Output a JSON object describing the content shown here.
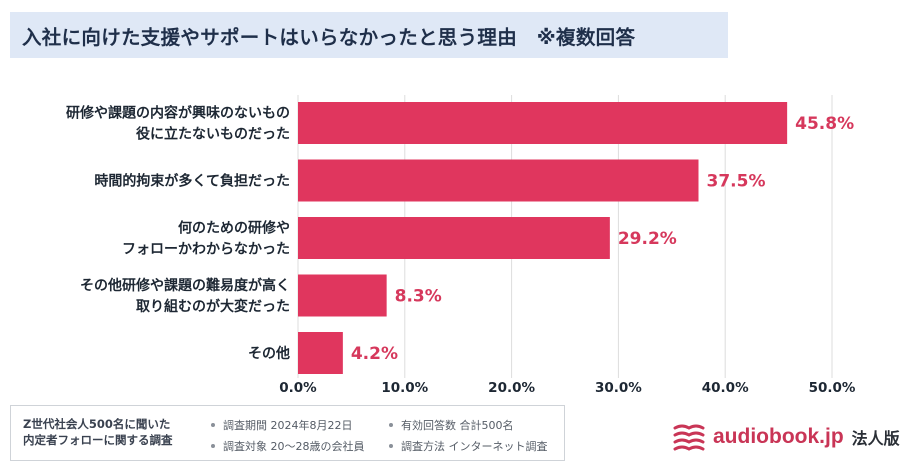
{
  "header": {
    "title": "入社に向けた支援やサポートはいらなかったと思う理由　※複数回答"
  },
  "chart_data": {
    "type": "bar",
    "orientation": "horizontal",
    "categories": [
      [
        "研修や課題の内容が興味のないもの",
        "役に立たないものだった"
      ],
      [
        "時間的拘束が多くて負担だった"
      ],
      [
        "何のための研修や",
        "フォローかわからなかった"
      ],
      [
        "その他研修や課題の難易度が高く",
        "取り組むのが大変だった"
      ],
      [
        "その他"
      ]
    ],
    "values": [
      45.8,
      37.5,
      29.2,
      8.3,
      4.2
    ],
    "value_labels": [
      "45.8%",
      "37.5%",
      "29.2%",
      "8.3%",
      "4.2%"
    ],
    "xlim": [
      0,
      50
    ],
    "xticks": [
      0,
      10,
      20,
      30,
      40,
      50
    ],
    "xtick_labels": [
      "0.0%",
      "10.0%",
      "20.0%",
      "30.0%",
      "40.0%",
      "50.0%"
    ],
    "grid": "vertical",
    "bar_color": "#e0365e",
    "value_label_color": "#d6385c",
    "grid_color": "#dddddd"
  },
  "survey": {
    "title_lines": [
      "Z世代社会人500名に聞いた",
      "内定者フォローに関する調査"
    ],
    "items": [
      "調査期間 2024年8月22日",
      "調査対象 20～28歳の会社員",
      "有効回答数 合計500名",
      "調査方法 インターネット調査"
    ]
  },
  "brand": {
    "logo_icon": "book-stack-icon",
    "name": "audiobook.jp",
    "suffix": "法人版",
    "color": "#c93556"
  }
}
